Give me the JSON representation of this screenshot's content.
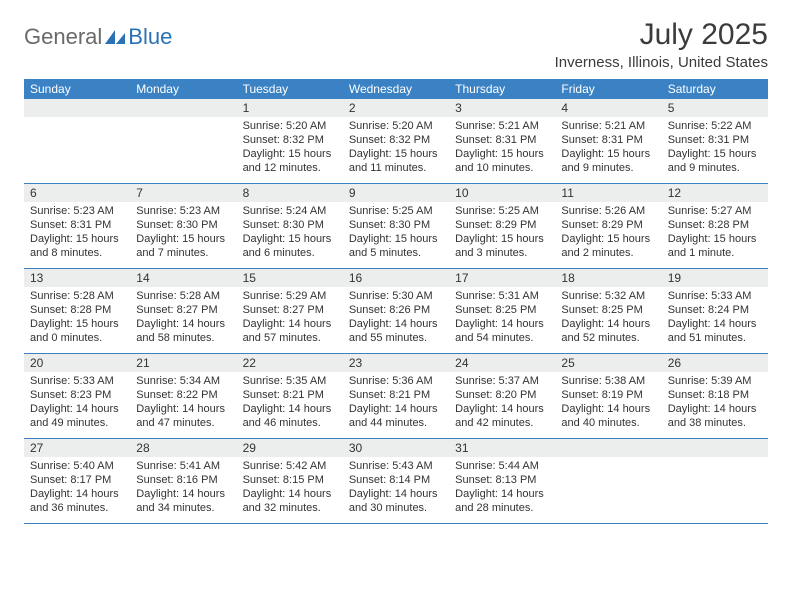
{
  "brand": {
    "general": "General",
    "blue": "Blue"
  },
  "title": "July 2025",
  "location": "Inverness, Illinois, United States",
  "header_bg": "#3a82c4",
  "dow": [
    "Sunday",
    "Monday",
    "Tuesday",
    "Wednesday",
    "Thursday",
    "Friday",
    "Saturday"
  ],
  "weeks": [
    [
      null,
      null,
      {
        "n": "1",
        "sr": "Sunrise: 5:20 AM",
        "ss": "Sunset: 8:32 PM",
        "dl1": "Daylight: 15 hours",
        "dl2": "and 12 minutes."
      },
      {
        "n": "2",
        "sr": "Sunrise: 5:20 AM",
        "ss": "Sunset: 8:32 PM",
        "dl1": "Daylight: 15 hours",
        "dl2": "and 11 minutes."
      },
      {
        "n": "3",
        "sr": "Sunrise: 5:21 AM",
        "ss": "Sunset: 8:31 PM",
        "dl1": "Daylight: 15 hours",
        "dl2": "and 10 minutes."
      },
      {
        "n": "4",
        "sr": "Sunrise: 5:21 AM",
        "ss": "Sunset: 8:31 PM",
        "dl1": "Daylight: 15 hours",
        "dl2": "and 9 minutes."
      },
      {
        "n": "5",
        "sr": "Sunrise: 5:22 AM",
        "ss": "Sunset: 8:31 PM",
        "dl1": "Daylight: 15 hours",
        "dl2": "and 9 minutes."
      }
    ],
    [
      {
        "n": "6",
        "sr": "Sunrise: 5:23 AM",
        "ss": "Sunset: 8:31 PM",
        "dl1": "Daylight: 15 hours",
        "dl2": "and 8 minutes."
      },
      {
        "n": "7",
        "sr": "Sunrise: 5:23 AM",
        "ss": "Sunset: 8:30 PM",
        "dl1": "Daylight: 15 hours",
        "dl2": "and 7 minutes."
      },
      {
        "n": "8",
        "sr": "Sunrise: 5:24 AM",
        "ss": "Sunset: 8:30 PM",
        "dl1": "Daylight: 15 hours",
        "dl2": "and 6 minutes."
      },
      {
        "n": "9",
        "sr": "Sunrise: 5:25 AM",
        "ss": "Sunset: 8:30 PM",
        "dl1": "Daylight: 15 hours",
        "dl2": "and 5 minutes."
      },
      {
        "n": "10",
        "sr": "Sunrise: 5:25 AM",
        "ss": "Sunset: 8:29 PM",
        "dl1": "Daylight: 15 hours",
        "dl2": "and 3 minutes."
      },
      {
        "n": "11",
        "sr": "Sunrise: 5:26 AM",
        "ss": "Sunset: 8:29 PM",
        "dl1": "Daylight: 15 hours",
        "dl2": "and 2 minutes."
      },
      {
        "n": "12",
        "sr": "Sunrise: 5:27 AM",
        "ss": "Sunset: 8:28 PM",
        "dl1": "Daylight: 15 hours",
        "dl2": "and 1 minute."
      }
    ],
    [
      {
        "n": "13",
        "sr": "Sunrise: 5:28 AM",
        "ss": "Sunset: 8:28 PM",
        "dl1": "Daylight: 15 hours",
        "dl2": "and 0 minutes."
      },
      {
        "n": "14",
        "sr": "Sunrise: 5:28 AM",
        "ss": "Sunset: 8:27 PM",
        "dl1": "Daylight: 14 hours",
        "dl2": "and 58 minutes."
      },
      {
        "n": "15",
        "sr": "Sunrise: 5:29 AM",
        "ss": "Sunset: 8:27 PM",
        "dl1": "Daylight: 14 hours",
        "dl2": "and 57 minutes."
      },
      {
        "n": "16",
        "sr": "Sunrise: 5:30 AM",
        "ss": "Sunset: 8:26 PM",
        "dl1": "Daylight: 14 hours",
        "dl2": "and 55 minutes."
      },
      {
        "n": "17",
        "sr": "Sunrise: 5:31 AM",
        "ss": "Sunset: 8:25 PM",
        "dl1": "Daylight: 14 hours",
        "dl2": "and 54 minutes."
      },
      {
        "n": "18",
        "sr": "Sunrise: 5:32 AM",
        "ss": "Sunset: 8:25 PM",
        "dl1": "Daylight: 14 hours",
        "dl2": "and 52 minutes."
      },
      {
        "n": "19",
        "sr": "Sunrise: 5:33 AM",
        "ss": "Sunset: 8:24 PM",
        "dl1": "Daylight: 14 hours",
        "dl2": "and 51 minutes."
      }
    ],
    [
      {
        "n": "20",
        "sr": "Sunrise: 5:33 AM",
        "ss": "Sunset: 8:23 PM",
        "dl1": "Daylight: 14 hours",
        "dl2": "and 49 minutes."
      },
      {
        "n": "21",
        "sr": "Sunrise: 5:34 AM",
        "ss": "Sunset: 8:22 PM",
        "dl1": "Daylight: 14 hours",
        "dl2": "and 47 minutes."
      },
      {
        "n": "22",
        "sr": "Sunrise: 5:35 AM",
        "ss": "Sunset: 8:21 PM",
        "dl1": "Daylight: 14 hours",
        "dl2": "and 46 minutes."
      },
      {
        "n": "23",
        "sr": "Sunrise: 5:36 AM",
        "ss": "Sunset: 8:21 PM",
        "dl1": "Daylight: 14 hours",
        "dl2": "and 44 minutes."
      },
      {
        "n": "24",
        "sr": "Sunrise: 5:37 AM",
        "ss": "Sunset: 8:20 PM",
        "dl1": "Daylight: 14 hours",
        "dl2": "and 42 minutes."
      },
      {
        "n": "25",
        "sr": "Sunrise: 5:38 AM",
        "ss": "Sunset: 8:19 PM",
        "dl1": "Daylight: 14 hours",
        "dl2": "and 40 minutes."
      },
      {
        "n": "26",
        "sr": "Sunrise: 5:39 AM",
        "ss": "Sunset: 8:18 PM",
        "dl1": "Daylight: 14 hours",
        "dl2": "and 38 minutes."
      }
    ],
    [
      {
        "n": "27",
        "sr": "Sunrise: 5:40 AM",
        "ss": "Sunset: 8:17 PM",
        "dl1": "Daylight: 14 hours",
        "dl2": "and 36 minutes."
      },
      {
        "n": "28",
        "sr": "Sunrise: 5:41 AM",
        "ss": "Sunset: 8:16 PM",
        "dl1": "Daylight: 14 hours",
        "dl2": "and 34 minutes."
      },
      {
        "n": "29",
        "sr": "Sunrise: 5:42 AM",
        "ss": "Sunset: 8:15 PM",
        "dl1": "Daylight: 14 hours",
        "dl2": "and 32 minutes."
      },
      {
        "n": "30",
        "sr": "Sunrise: 5:43 AM",
        "ss": "Sunset: 8:14 PM",
        "dl1": "Daylight: 14 hours",
        "dl2": "and 30 minutes."
      },
      {
        "n": "31",
        "sr": "Sunrise: 5:44 AM",
        "ss": "Sunset: 8:13 PM",
        "dl1": "Daylight: 14 hours",
        "dl2": "and 28 minutes."
      },
      null,
      null
    ]
  ]
}
